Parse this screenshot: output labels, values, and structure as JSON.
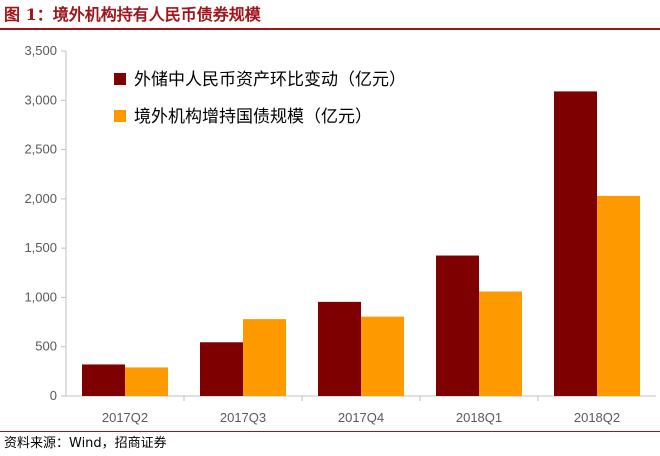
{
  "figure": {
    "title": "图 1：境外机构持有人民币债券规模",
    "source": "资料来源：Wind，招商证券"
  },
  "colors": {
    "accent": "#a0151b",
    "series1": "#7f0000",
    "series2": "#ff9900",
    "axis": "#bfbfbf"
  },
  "chart_data": {
    "type": "bar",
    "categories": [
      "2017Q2",
      "2017Q3",
      "2017Q4",
      "2018Q1",
      "2018Q2"
    ],
    "series": [
      {
        "name": "外储中人民币资产环比变动（亿元）",
        "values": [
          320,
          545,
          955,
          1425,
          3090
        ]
      },
      {
        "name": "境外机构增持国债规模（亿元）",
        "values": [
          290,
          780,
          805,
          1060,
          2030
        ]
      }
    ],
    "ylim": [
      0,
      3500
    ],
    "yticks": [
      0,
      500,
      1000,
      1500,
      2000,
      2500,
      3000,
      3500
    ],
    "ytick_labels": [
      "0",
      "500",
      "1,000",
      "1,500",
      "2,000",
      "2,500",
      "3,000",
      "3,500"
    ],
    "grid": false,
    "legend": "top-left",
    "title": "",
    "xlabel": "",
    "ylabel": ""
  }
}
